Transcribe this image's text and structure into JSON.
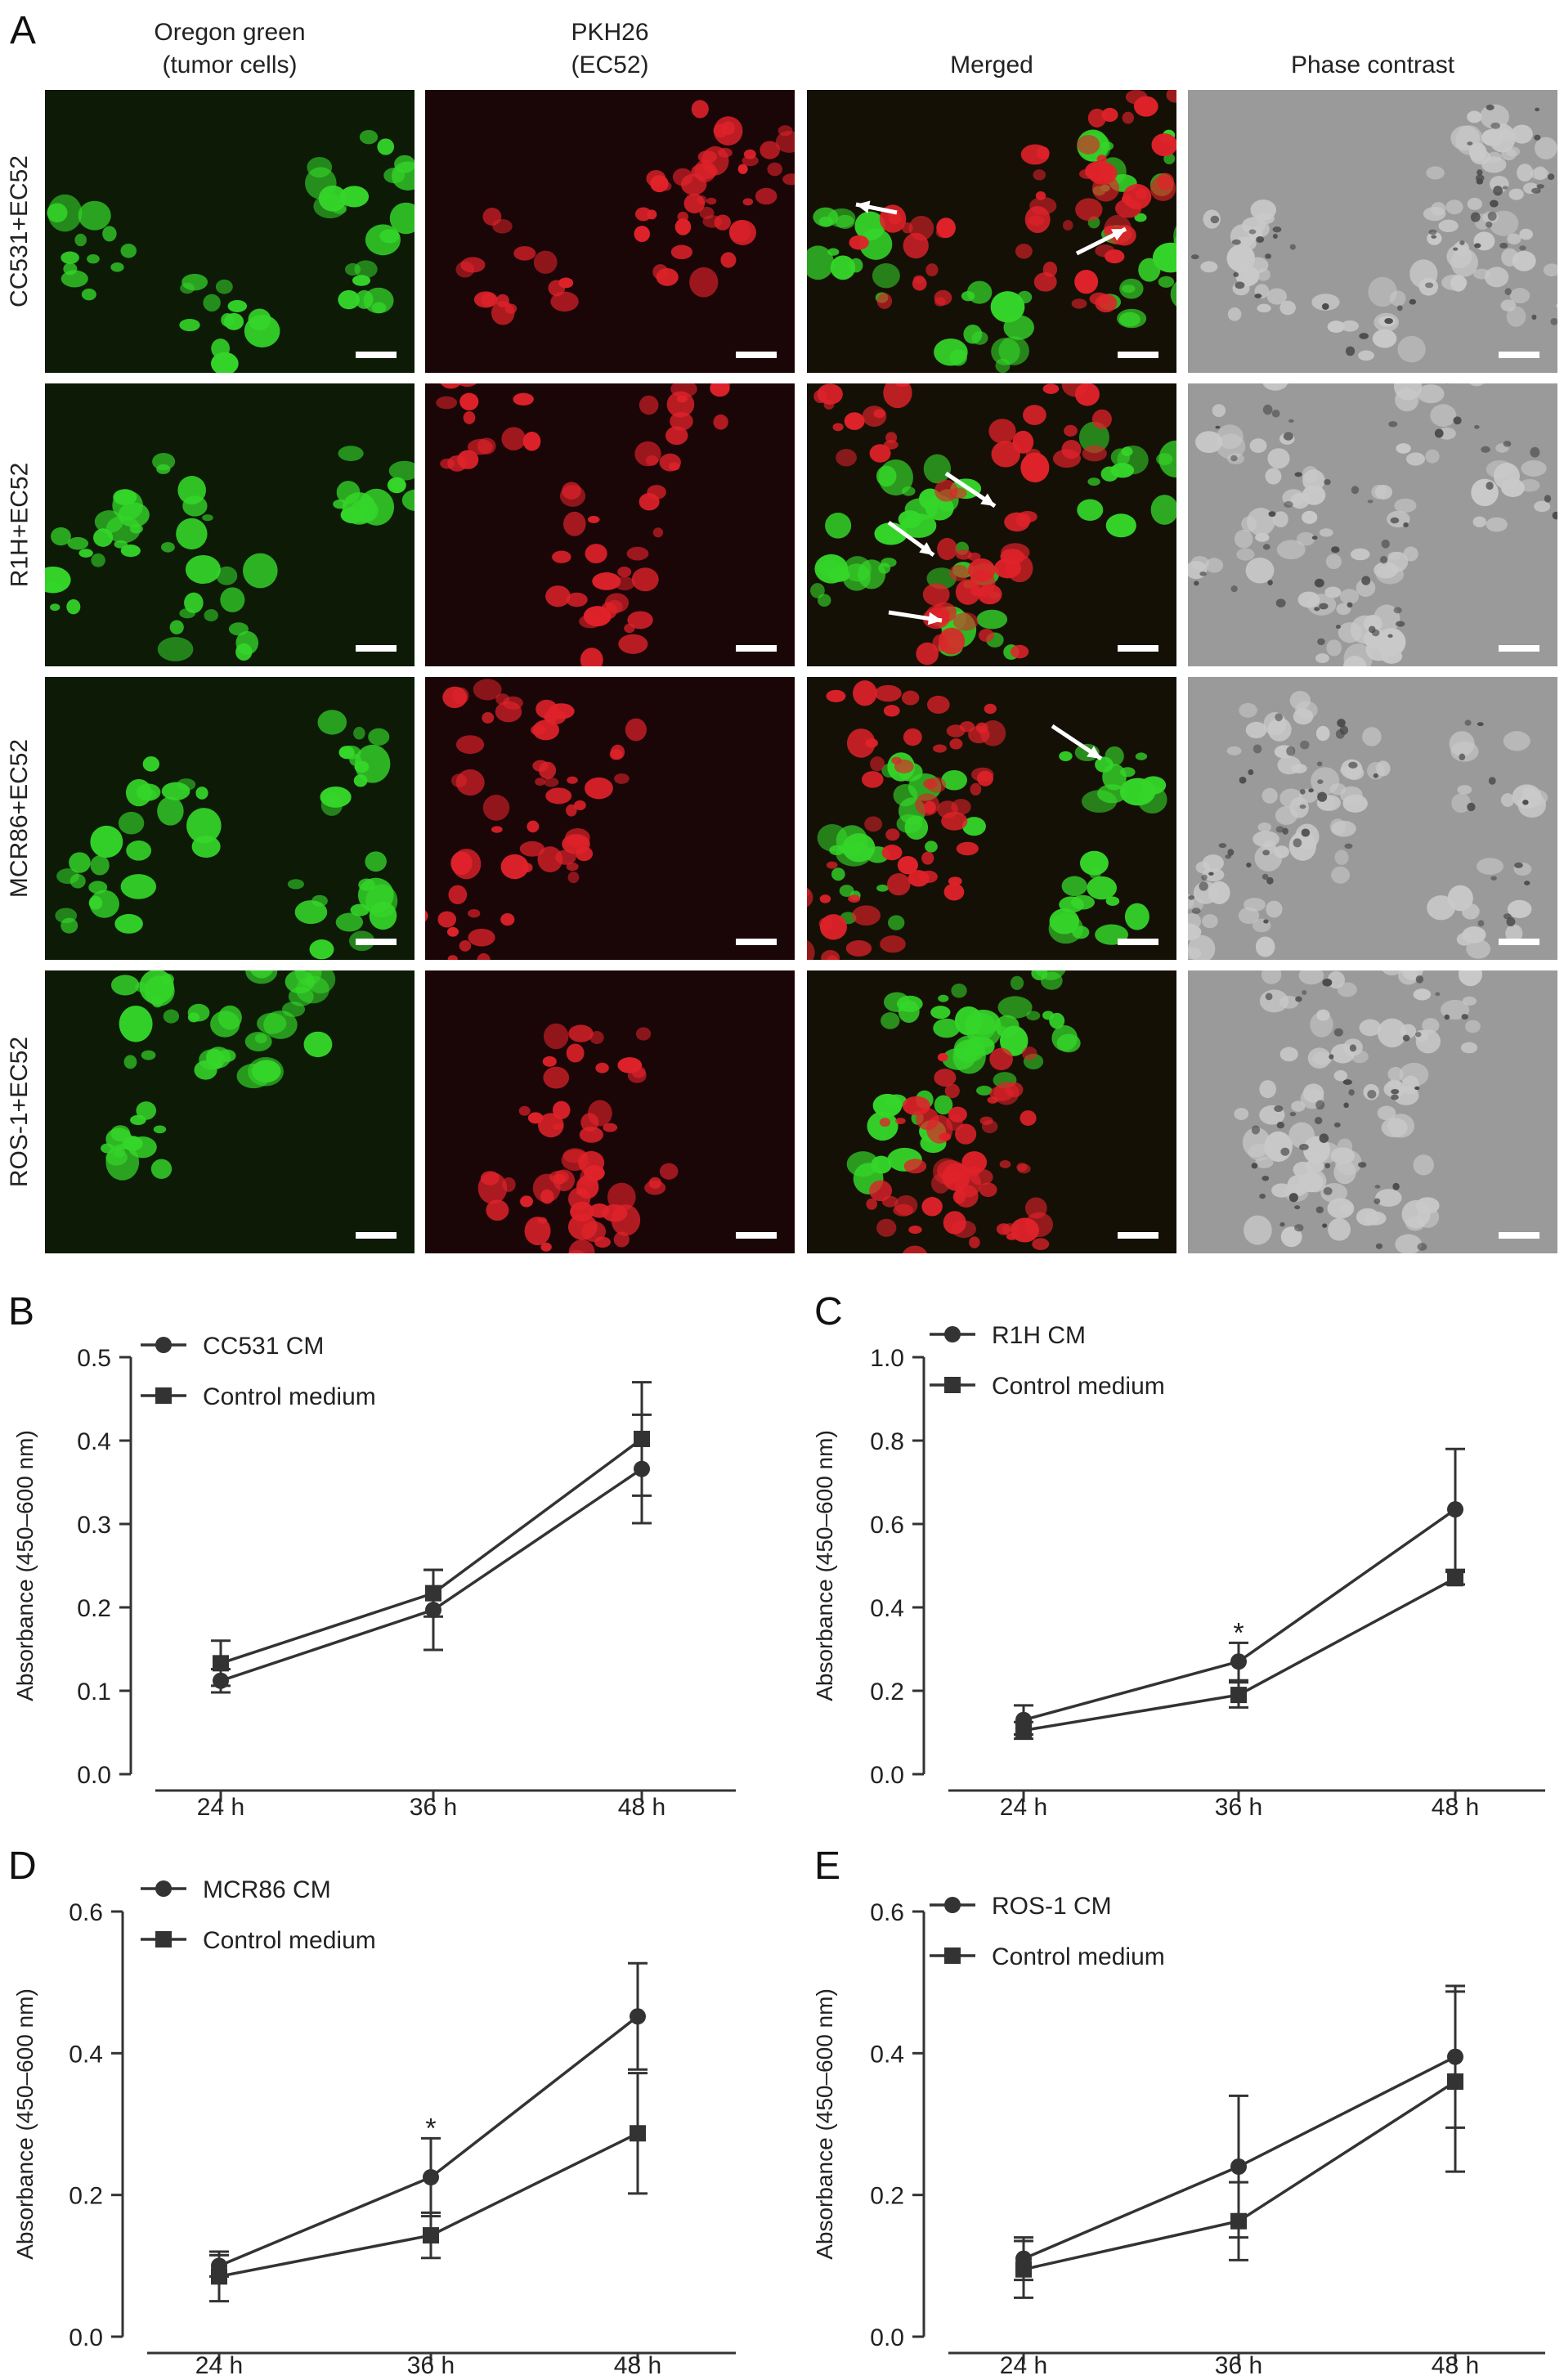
{
  "figure": {
    "panel_a_label": "A",
    "columns": [
      {
        "line1": "Oregon green",
        "line2": "(tumor cells)"
      },
      {
        "line1": "PKH26",
        "line2": "(EC52)"
      },
      {
        "line1": "Merged",
        "line2": ""
      },
      {
        "line1": "Phase contrast",
        "line2": ""
      }
    ],
    "rows": [
      "CC531+EC52",
      "R1H+EC52",
      "MCR86+EC52",
      "ROS-1+EC52"
    ],
    "tile_colors": {
      "green": "#0c1a06",
      "red": "#1a0507",
      "merged": "#151005",
      "phase": "#9a9a9a"
    }
  },
  "chart_data": [
    {
      "panel": "B",
      "type": "line",
      "categories": [
        "24 h",
        "36 h",
        "48 h"
      ],
      "ylabel": "Absorbance (450–600 nm)",
      "ylim": [
        0,
        0.5
      ],
      "yticks": [
        "0.0",
        "0.1",
        "0.2",
        "0.3",
        "0.4",
        "0.5"
      ],
      "ytick_values": [
        0,
        0.1,
        0.2,
        0.3,
        0.4,
        0.5
      ],
      "series": [
        {
          "name": "CC531 CM",
          "marker": "circle",
          "values": [
            0.112,
            0.197,
            0.366
          ],
          "err": [
            0.014,
            0.048,
            0.065
          ]
        },
        {
          "name": "Control medium",
          "marker": "square",
          "values": [
            0.133,
            0.217,
            0.402
          ],
          "err": [
            0.027,
            0.028,
            0.068
          ]
        }
      ],
      "annotations": []
    },
    {
      "panel": "C",
      "type": "line",
      "categories": [
        "24 h",
        "36 h",
        "48 h"
      ],
      "ylabel": "Absorbance (450–600 nm)",
      "ylim": [
        0,
        1.0
      ],
      "yticks": [
        "0.0",
        "0.2",
        "0.4",
        "0.6",
        "0.8",
        "1.0"
      ],
      "ytick_values": [
        0,
        0.2,
        0.4,
        0.6,
        0.8,
        1.0
      ],
      "series": [
        {
          "name": "R1H CM",
          "marker": "circle",
          "values": [
            0.13,
            0.27,
            0.635
          ],
          "err": [
            0.035,
            0.045,
            0.145
          ]
        },
        {
          "name": "Control medium",
          "marker": "square",
          "values": [
            0.105,
            0.19,
            0.47
          ],
          "err": [
            0.02,
            0.03,
            0.015
          ]
        }
      ],
      "annotations": [
        {
          "text": "*",
          "category": "36 h",
          "value": 0.34
        }
      ]
    },
    {
      "panel": "D",
      "type": "line",
      "categories": [
        "24 h",
        "36 h",
        "48 h"
      ],
      "ylabel": "Absorbance (450–600 nm)",
      "ylim": [
        0,
        0.6
      ],
      "yticks": [
        "0.0",
        "0.2",
        "0.4",
        "0.6"
      ],
      "ytick_values": [
        0,
        0.2,
        0.4,
        0.6
      ],
      "series": [
        {
          "name": "MCR86 CM",
          "marker": "circle",
          "values": [
            0.1,
            0.225,
            0.452
          ],
          "err": [
            0.015,
            0.055,
            0.075
          ]
        },
        {
          "name": "Control medium",
          "marker": "square",
          "values": [
            0.085,
            0.143,
            0.287
          ],
          "err": [
            0.035,
            0.032,
            0.085
          ]
        }
      ],
      "annotations": [
        {
          "text": "*",
          "category": "36 h",
          "value": 0.295
        }
      ]
    },
    {
      "panel": "E",
      "type": "line",
      "categories": [
        "24 h",
        "36 h",
        "48 h"
      ],
      "ylabel": "Absorbance (450–600 nm)",
      "ylim": [
        0,
        0.6
      ],
      "yticks": [
        "0.0",
        "0.2",
        "0.4",
        "0.6"
      ],
      "ytick_values": [
        0,
        0.2,
        0.4,
        0.6
      ],
      "series": [
        {
          "name": "ROS-1 CM",
          "marker": "circle",
          "values": [
            0.11,
            0.24,
            0.395
          ],
          "err": [
            0.03,
            0.1,
            0.1
          ]
        },
        {
          "name": "Control medium",
          "marker": "square",
          "values": [
            0.095,
            0.163,
            0.36
          ],
          "err": [
            0.04,
            0.055,
            0.127
          ]
        }
      ],
      "annotations": []
    }
  ]
}
